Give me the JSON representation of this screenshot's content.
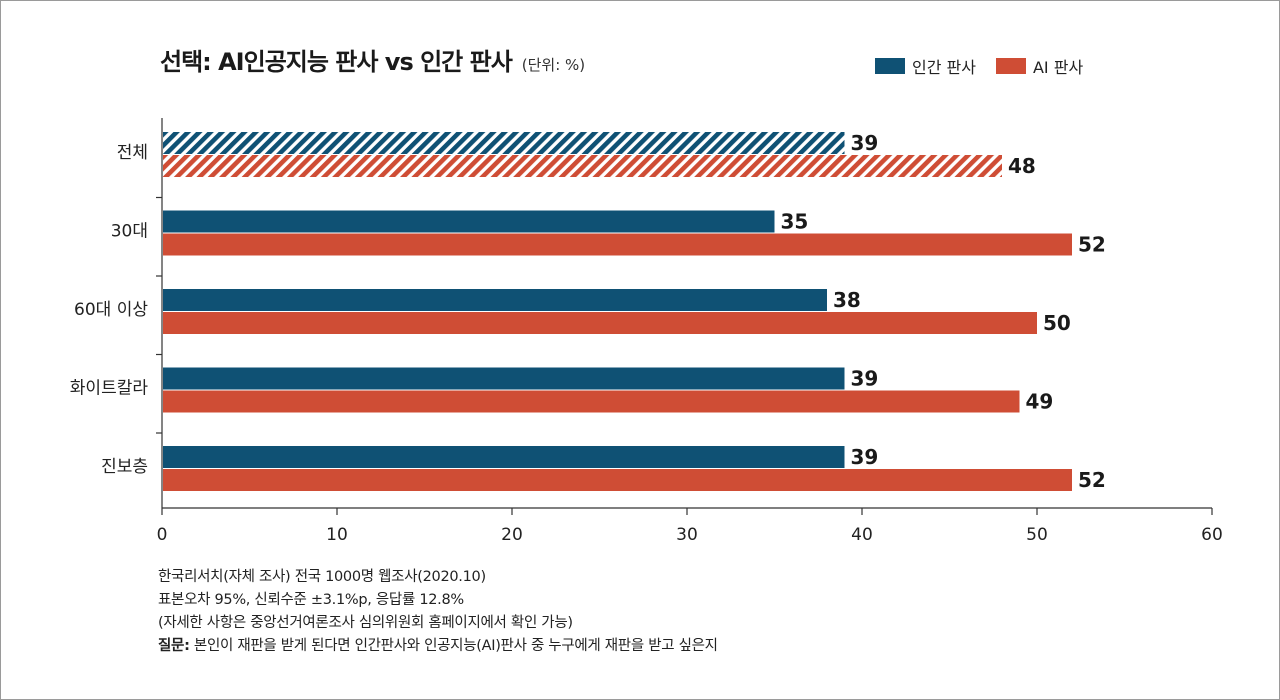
{
  "header": {
    "title": "선택: AI인공지능 판사 vs 인간 판사",
    "unit": "(단위: %)"
  },
  "legend": [
    {
      "label": "인간 판사",
      "color": "#0f5174"
    },
    {
      "label": "AI 판사",
      "color": "#cf4d35"
    }
  ],
  "chart_data": {
    "type": "bar",
    "orientation": "horizontal",
    "title": "선택: AI인공지능 판사 vs 인간 판사",
    "unit": "%",
    "categories": [
      "전체",
      "30대",
      "60대 이상",
      "화이트칼라",
      "진보층"
    ],
    "series": [
      {
        "name": "인간 판사",
        "color": "#0f5174",
        "values": [
          39,
          35,
          38,
          39,
          39
        ]
      },
      {
        "name": "AI 판사",
        "color": "#cf4d35",
        "values": [
          48,
          52,
          50,
          49,
          52
        ]
      }
    ],
    "hatched_categories": [
      "전체"
    ],
    "xlim": [
      0,
      60
    ],
    "xticks": [
      0,
      10,
      20,
      30,
      40,
      50,
      60
    ],
    "grid": false
  },
  "notes": {
    "line1": "한국리서치(자체 조사) 전국 1000명 웹조사(2020.10)",
    "line2": "표본오차 95%, 신뢰수준 ±3.1%p, 응답률 12.8%",
    "line3": "(자세한 사항은 중앙선거여론조사 심의위원회 홈페이지에서 확인 가능)",
    "question_label": "질문:",
    "question_text": " 본인이 재판을 받게 된다면 인간판사와 인공지능(AI)판사 중 누구에게 재판을 받고 싶은지"
  }
}
